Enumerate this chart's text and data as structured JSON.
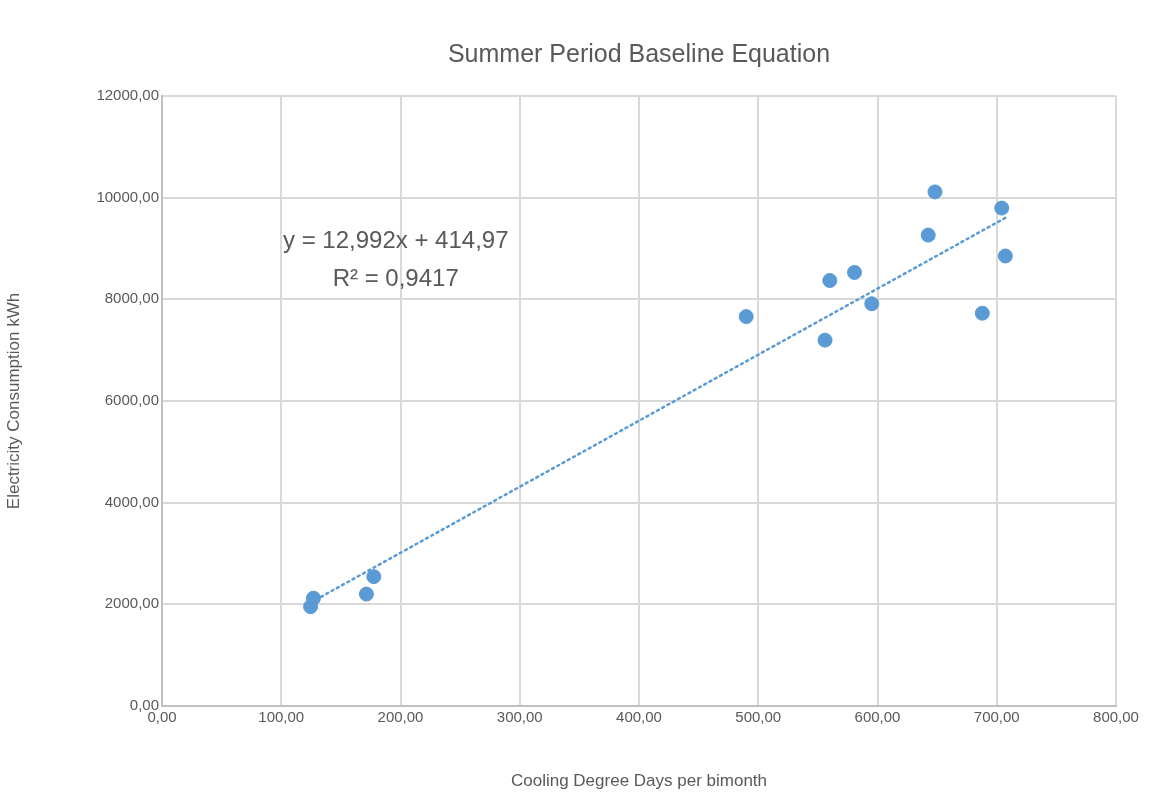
{
  "chart_data": {
    "type": "scatter",
    "title": "Summer Period Baseline Equation",
    "xlabel": "Cooling Degree Days per bimonth",
    "ylabel": "Electricity Consumption kWh",
    "annotations": [
      "y = 12,992x + 414,97",
      "R² = 0,9417"
    ],
    "series": [
      {
        "color": "#5b9bd5",
        "x": [
          124.6,
          127,
          171.4,
          177.6,
          489.9,
          556,
          560,
          580.7,
          595.2,
          642.5,
          648.2,
          687.9,
          704.2,
          707.2
        ],
        "values": [
          1954,
          2121,
          2201,
          2545,
          7660,
          7197,
          8370,
          8529,
          7913,
          9264,
          10113,
          7727,
          9795,
          8853
        ]
      },
      {
        "type": "line",
        "color": "#5b9bd5",
        "line_style": "dotted",
        "marker": "none",
        "x": [
          124.6,
          707.2
        ],
        "values": [
          2034,
          9603
        ]
      }
    ],
    "marker": "circle",
    "grid": true,
    "legend": false,
    "xlim": [
      0,
      800
    ],
    "xticks": [
      {
        "value": 0,
        "label": "0,00"
      },
      {
        "value": 100,
        "label": "100,00"
      },
      {
        "value": 200,
        "label": "200,00"
      },
      {
        "value": 300,
        "label": "300,00"
      },
      {
        "value": 400,
        "label": "400,00"
      },
      {
        "value": 500,
        "label": "500,00"
      },
      {
        "value": 600,
        "label": "600,00"
      },
      {
        "value": 700,
        "label": "700,00"
      },
      {
        "value": 800,
        "label": "800,00"
      }
    ],
    "ylim": [
      0,
      12000
    ],
    "yticks": [
      {
        "value": 0,
        "label": "0,00"
      },
      {
        "value": 2000,
        "label": "2000,00"
      },
      {
        "value": 4000,
        "label": "4000,00"
      },
      {
        "value": 6000,
        "label": "6000,00"
      },
      {
        "value": 8000,
        "label": "8000,00"
      },
      {
        "value": 10000,
        "label": "10000,00"
      },
      {
        "value": 12000,
        "label": "12000,00"
      }
    ]
  }
}
